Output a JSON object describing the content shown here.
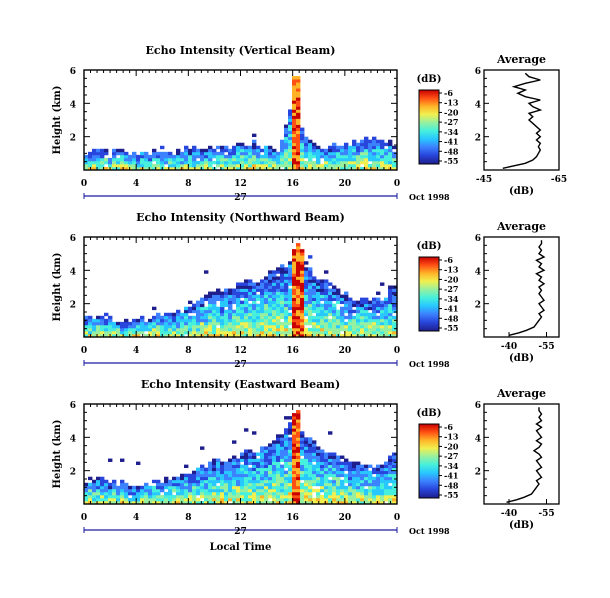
{
  "colors": {
    "scale": [
      "#1e1e8c",
      "#2846dc",
      "#3c82ff",
      "#28c8ff",
      "#46f0dc",
      "#96f0a0",
      "#f0f050",
      "#ffb428",
      "#ff5014",
      "#c80000"
    ],
    "frame": "#000000",
    "axis_line": "#1a1aa0"
  },
  "chart_data": [
    {
      "type": "heatmap",
      "title": "Echo Intensity (Vertical Beam)",
      "ylabel": "Height (km)",
      "xlim": [
        0,
        24
      ],
      "ylim": [
        0,
        6
      ],
      "x_ticks": [
        "0",
        "4",
        "8",
        "12",
        "16",
        "20",
        "0"
      ],
      "y_ticks": [
        "2",
        "4",
        "6"
      ],
      "day_label": "27",
      "date_label": "Oct 1998",
      "colorbar": {
        "unit": "(dB)",
        "labels": [
          "-6",
          "-13",
          "-20",
          "-27",
          "-34",
          "-41",
          "-48",
          "-55"
        ]
      },
      "echo_top_km": [
        1.0,
        1.3,
        1.2,
        1.1,
        1.0,
        1.1,
        1.2,
        1.0,
        1.4,
        1.2,
        1.3,
        1.4,
        1.6,
        1.7,
        1.5,
        1.3,
        3.8,
        2.0,
        1.4,
        1.5,
        1.6,
        1.8,
        2.0,
        1.9,
        1.4
      ],
      "strong_columns": [
        {
          "x": 16.3,
          "top": 5.8
        }
      ]
    },
    {
      "type": "heatmap",
      "title": "Echo Intensity (Northward Beam)",
      "ylabel": "Height (km)",
      "xlim": [
        0,
        24
      ],
      "ylim": [
        0,
        6
      ],
      "x_ticks": [
        "0",
        "4",
        "8",
        "12",
        "16",
        "20",
        "0"
      ],
      "y_ticks": [
        "2",
        "4",
        "6"
      ],
      "day_label": "27",
      "date_label": "Oct 1998",
      "colorbar": {
        "unit": "(dB)",
        "labels": [
          "-6",
          "-13",
          "-20",
          "-27",
          "-34",
          "-41",
          "-48",
          "-55"
        ]
      },
      "echo_top_km": [
        1.2,
        1.3,
        1.0,
        0.9,
        1.1,
        1.2,
        1.4,
        1.6,
        1.8,
        2.3,
        2.6,
        2.8,
        3.2,
        3.4,
        3.6,
        4.2,
        4.6,
        4.2,
        3.6,
        3.2,
        2.6,
        2.2,
        2.2,
        2.4,
        3.3
      ],
      "strong_columns": [
        {
          "x": 16.2,
          "top": 5.6
        },
        {
          "x": 16.6,
          "top": 5.6
        }
      ]
    },
    {
      "type": "heatmap",
      "title": "Echo Intensity (Eastward Beam)",
      "ylabel": "Height (km)",
      "xlim": [
        0,
        24
      ],
      "ylim": [
        0,
        6
      ],
      "x_ticks": [
        "0",
        "4",
        "8",
        "12",
        "16",
        "20",
        "0"
      ],
      "y_ticks": [
        "2",
        "4",
        "6"
      ],
      "day_label": "27",
      "date_label": "Oct 1998",
      "xlabel": "Local Time",
      "colorbar": {
        "unit": "(dB)",
        "labels": [
          "-6",
          "-13",
          "-20",
          "-27",
          "-34",
          "-41",
          "-48",
          "-55"
        ]
      },
      "echo_top_km": [
        1.4,
        1.6,
        1.3,
        1.2,
        1.1,
        1.3,
        1.4,
        1.7,
        1.9,
        2.2,
        2.6,
        2.8,
        3.0,
        3.2,
        3.4,
        4.2,
        4.8,
        4.2,
        3.5,
        3.0,
        2.7,
        2.4,
        2.3,
        2.5,
        3.2
      ],
      "strong_columns": [
        {
          "x": 16.4,
          "top": 5.8
        }
      ]
    },
    {
      "type": "line",
      "title": "Average",
      "xlabel": "(dB)",
      "ylabel": "",
      "xlim": [
        -45,
        -65
      ],
      "ylim": [
        0,
        6
      ],
      "x_ticks": [
        "-45",
        "-65"
      ],
      "y_ticks": [
        "2",
        "4",
        "6"
      ],
      "x": [
        -50,
        -53,
        -56,
        -58,
        -59,
        -59.5,
        -60,
        -59.5,
        -60,
        -59,
        -60,
        -59,
        -60,
        -59,
        -58,
        -57,
        -58,
        -57,
        -60,
        -58,
        -57,
        -60,
        -56,
        -54,
        -56,
        -53,
        -56,
        -60,
        -57,
        -56
      ],
      "y": [
        0.1,
        0.25,
        0.4,
        0.6,
        0.8,
        1.0,
        1.2,
        1.4,
        1.6,
        1.8,
        2.0,
        2.2,
        2.4,
        2.6,
        2.8,
        3.0,
        3.2,
        3.4,
        3.6,
        3.8,
        4.0,
        4.2,
        4.4,
        4.6,
        4.8,
        5.0,
        5.2,
        5.4,
        5.6,
        5.8
      ]
    },
    {
      "type": "line",
      "title": "Average",
      "xlabel": "(dB)",
      "ylabel": "",
      "xlim": [
        -30,
        -60
      ],
      "ylim": [
        0,
        6
      ],
      "x_ticks": [
        "-40",
        "-55"
      ],
      "y_ticks": [
        "2",
        "4",
        "6"
      ],
      "x": [
        -40,
        -44,
        -47,
        -50,
        -51,
        -52,
        -53,
        -52,
        -54,
        -53,
        -52,
        -54,
        -53,
        -52,
        -53,
        -52,
        -54,
        -52,
        -53,
        -51,
        -54,
        -52,
        -53,
        -51,
        -54,
        -52,
        -53,
        -52,
        -53,
        -53
      ],
      "y": [
        0.1,
        0.25,
        0.4,
        0.6,
        0.8,
        1.0,
        1.2,
        1.4,
        1.6,
        1.8,
        2.0,
        2.2,
        2.4,
        2.6,
        2.8,
        3.0,
        3.2,
        3.4,
        3.6,
        3.8,
        4.0,
        4.2,
        4.4,
        4.6,
        4.8,
        5.0,
        5.2,
        5.4,
        5.6,
        5.8
      ]
    },
    {
      "type": "line",
      "title": "Average",
      "xlabel": "(dB)",
      "ylabel": "",
      "xlim": [
        -30,
        -60
      ],
      "ylim": [
        0,
        6
      ],
      "x_ticks": [
        "-40",
        "-55"
      ],
      "y_ticks": [
        "2",
        "4",
        "6"
      ],
      "x": [
        -39,
        -43,
        -46,
        -49,
        -50,
        -51,
        -52,
        -51,
        -53,
        -52,
        -51,
        -53,
        -52,
        -51,
        -53,
        -52,
        -50,
        -52,
        -53,
        -51,
        -53,
        -52,
        -51,
        -53,
        -51,
        -53,
        -52,
        -53,
        -52,
        -52
      ],
      "y": [
        0.1,
        0.25,
        0.4,
        0.6,
        0.8,
        1.0,
        1.2,
        1.4,
        1.6,
        1.8,
        2.0,
        2.2,
        2.4,
        2.6,
        2.8,
        3.0,
        3.2,
        3.4,
        3.6,
        3.8,
        4.0,
        4.2,
        4.4,
        4.6,
        4.8,
        5.0,
        5.2,
        5.4,
        5.6,
        5.8
      ]
    }
  ]
}
